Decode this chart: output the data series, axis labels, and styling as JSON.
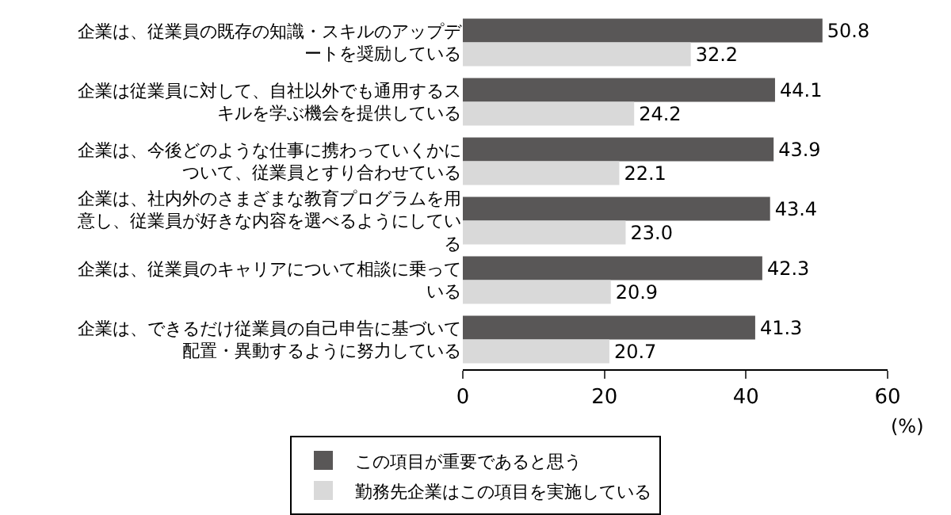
{
  "chart_data": {
    "type": "bar",
    "orientation": "horizontal",
    "categories": [
      "企業は、従業員の既存の知識・スキルのアップデートを奨励している",
      "企業は従業員に対して、自社以外でも通用するスキルを学ぶ機会を提供している",
      "企業は、今後どのような仕事に携わっていくかについて、従業員とすり合わせている",
      "企業は、社内外のさまざまな教育プログラムを用意し、従業員が好きな内容を選べるようにしている",
      "企業は、従業員のキャリアについて相談に乗っている",
      "企業は、できるだけ従業員の自己申告に基づいて配置・異動するように努力している"
    ],
    "series": [
      {
        "name": "この項目が重要であると思う",
        "color": "#595757",
        "values": [
          50.8,
          44.1,
          43.9,
          43.4,
          42.3,
          41.3
        ],
        "value_labels": [
          "50.8",
          "44.1",
          "43.9",
          "43.4",
          "42.3",
          "41.3"
        ]
      },
      {
        "name": "勤務先企業はこの項目を実施している",
        "color": "#d9d9d9",
        "values": [
          32.2,
          24.2,
          22.1,
          23.0,
          20.9,
          20.7
        ],
        "value_labels": [
          "32.2",
          "24.2",
          "22.1",
          "23.0",
          "20.9",
          "20.7"
        ]
      }
    ],
    "xlim": [
      0,
      60
    ],
    "xticks": [
      0,
      20,
      40,
      60
    ],
    "xlabel": "(%)",
    "legend": "bottom",
    "grid": false
  }
}
